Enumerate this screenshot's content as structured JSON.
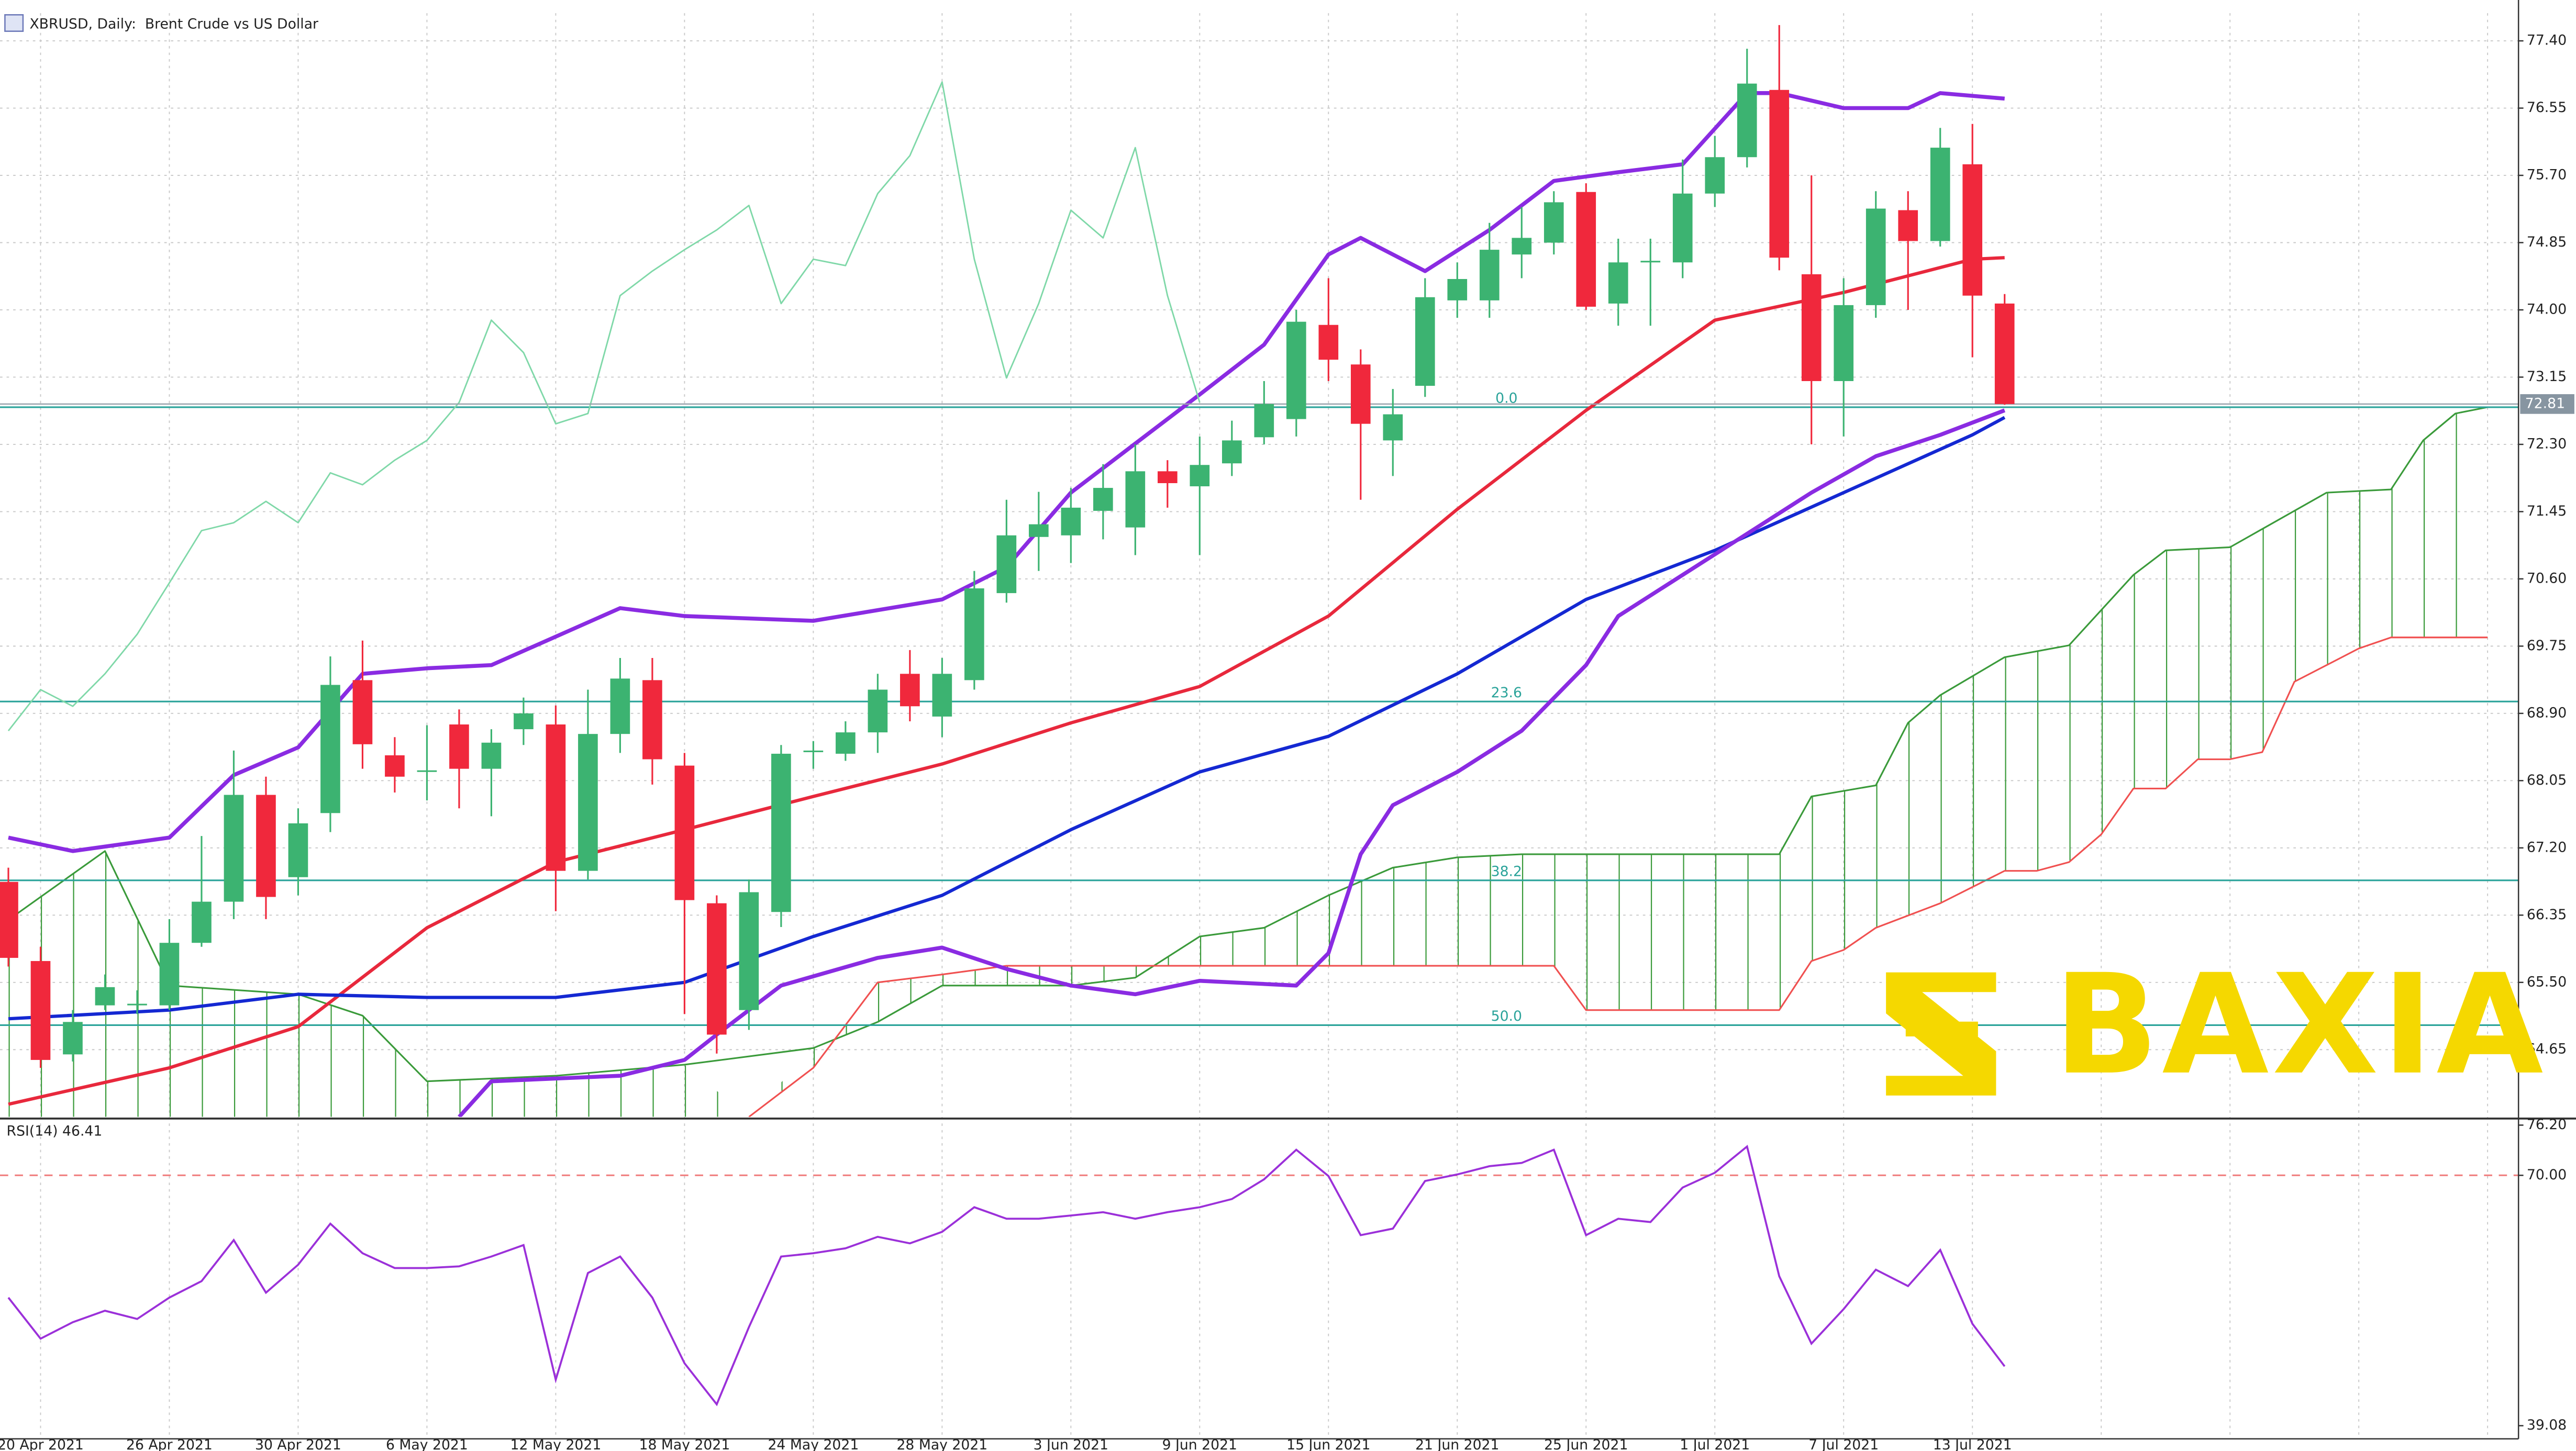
{
  "chart_data": {
    "type": "candlestick",
    "title": "XBRUSD, Daily:  Brent Crude vs US Dollar",
    "categories": [
      null,
      "20 Apr 2021",
      null,
      null,
      null,
      "26 Apr 2021",
      null,
      null,
      null,
      "30 Apr 2021",
      null,
      null,
      null,
      "6 May 2021",
      null,
      null,
      null,
      "12 May 2021",
      null,
      null,
      null,
      "18 May 2021",
      null,
      null,
      null,
      "24 May 2021",
      null,
      null,
      null,
      "28 May 2021",
      null,
      null,
      null,
      "3 Jun 2021",
      null,
      null,
      null,
      "9 Jun 2021",
      null,
      null,
      null,
      "15 Jun 2021",
      null,
      null,
      null,
      "21 Jun 2021",
      null,
      null,
      null,
      "25 Jun 2021",
      null,
      null,
      null,
      "1 Jul 2021",
      null,
      null,
      null,
      "7 Jul 2021",
      null,
      null,
      null,
      "13 Jul 2021",
      null
    ],
    "open": [
      66.77,
      65.77,
      64.59,
      65.21,
      65.21,
      65.21,
      66.0,
      66.52,
      67.87,
      66.83,
      67.64,
      69.32,
      68.37,
      68.16,
      68.76,
      68.2,
      68.7,
      68.76,
      66.91,
      68.64,
      69.32,
      68.24,
      66.5,
      65.15,
      66.39,
      68.41,
      68.39,
      68.66,
      69.4,
      68.86,
      69.32,
      70.42,
      71.13,
      71.15,
      71.46,
      71.25,
      71.96,
      71.77,
      72.06,
      72.39,
      72.62,
      73.81,
      73.31,
      72.35,
      73.04,
      74.12,
      74.12,
      74.7,
      74.85,
      75.49,
      74.08,
      74.6,
      74.6,
      75.47,
      75.93,
      76.78,
      74.45,
      73.1,
      74.06,
      75.26,
      74.87,
      75.84,
      74.08
    ],
    "high": [
      66.95,
      65.95,
      65.15,
      65.6,
      65.4,
      66.3,
      67.35,
      68.43,
      68.1,
      67.7,
      69.62,
      69.82,
      68.6,
      68.75,
      68.95,
      68.7,
      69.1,
      69.0,
      69.2,
      69.6,
      69.6,
      68.4,
      66.6,
      66.8,
      68.5,
      68.55,
      68.8,
      69.4,
      69.7,
      69.6,
      70.7,
      71.6,
      71.7,
      71.75,
      72.05,
      72.3,
      72.1,
      72.4,
      72.6,
      73.1,
      74.0,
      74.4,
      73.5,
      73.0,
      74.4,
      74.6,
      75.1,
      75.3,
      75.5,
      75.6,
      74.9,
      74.9,
      75.9,
      76.2,
      77.3,
      77.6,
      75.7,
      74.4,
      75.5,
      75.5,
      76.3,
      76.35,
      74.2
    ],
    "low": [
      65.7,
      64.42,
      64.5,
      65.15,
      65.1,
      65.15,
      65.95,
      66.3,
      66.3,
      66.6,
      67.4,
      68.2,
      67.9,
      67.8,
      67.7,
      67.6,
      68.5,
      66.4,
      66.8,
      68.4,
      68.0,
      65.1,
      64.6,
      64.9,
      66.2,
      68.2,
      68.3,
      68.4,
      68.8,
      68.6,
      69.2,
      70.3,
      70.7,
      70.8,
      71.1,
      70.9,
      71.5,
      70.9,
      71.9,
      72.3,
      72.4,
      73.1,
      71.6,
      71.9,
      72.9,
      73.9,
      73.9,
      74.4,
      74.7,
      74.0,
      73.8,
      73.8,
      74.4,
      75.3,
      75.8,
      74.5,
      72.3,
      72.4,
      73.9,
      74.0,
      74.8,
      73.4,
      72.8
    ],
    "close": [
      65.81,
      64.52,
      65.0,
      65.44,
      65.23,
      66.0,
      66.52,
      67.87,
      66.58,
      67.51,
      69.26,
      68.51,
      68.1,
      68.18,
      68.2,
      68.53,
      68.9,
      66.91,
      68.64,
      69.34,
      68.32,
      66.54,
      64.84,
      66.64,
      68.39,
      68.43,
      68.66,
      69.2,
      68.99,
      69.4,
      70.48,
      71.15,
      71.29,
      71.5,
      71.75,
      71.96,
      71.81,
      72.04,
      72.35,
      72.81,
      73.85,
      73.37,
      72.56,
      72.68,
      74.16,
      74.39,
      74.76,
      74.91,
      75.36,
      74.04,
      74.6,
      74.62,
      75.47,
      75.93,
      76.86,
      74.66,
      73.1,
      74.06,
      75.28,
      74.87,
      76.05,
      74.18,
      72.81
    ],
    "up_color": "#3cb371",
    "down_color": "#f0283c",
    "last_price": 72.81,
    "xlim": [
      -0.26,
      77.96
    ],
    "ylim": [
      63.8,
      77.75
    ],
    "yticks": [
      {
        "value": 77.4,
        "label": "77.40"
      },
      76.55,
      {
        "value": 75.7,
        "label": "75.70"
      },
      74.85,
      {
        "value": 74,
        "label": "74.00"
      },
      73.15,
      {
        "value": 72.3,
        "label": "72.30"
      },
      71.45,
      {
        "value": 70.6,
        "label": "70.60"
      },
      69.75,
      {
        "value": 68.9,
        "label": "68.90"
      },
      68.05,
      {
        "value": 67.2,
        "label": "67.20"
      },
      66.35,
      {
        "value": 65.5,
        "label": "65.50"
      },
      64.65
    ],
    "grid": true,
    "overlays": [
      {
        "color": "#e8283c",
        "width": 2,
        "x": [
          0,
          5,
          9,
          13,
          17,
          21,
          25,
          29,
          33,
          37,
          41,
          45,
          49,
          53,
          57,
          61,
          62
        ],
        "values": [
          63.96,
          64.42,
          64.94,
          66.19,
          67.02,
          67.43,
          67.85,
          68.26,
          68.78,
          69.24,
          70.13,
          71.48,
          72.73,
          73.87,
          74.22,
          74.64,
          74.66
        ]
      },
      {
        "color": "#1428d2",
        "width": 2,
        "x": [
          0,
          5,
          9,
          13,
          17,
          21,
          25,
          29,
          33,
          37,
          41,
          45,
          49,
          53,
          57,
          61,
          62
        ],
        "values": [
          65.04,
          65.15,
          65.35,
          65.31,
          65.31,
          65.5,
          66.08,
          66.6,
          67.43,
          68.16,
          68.61,
          69.4,
          70.34,
          70.96,
          71.69,
          72.42,
          72.64
        ]
      },
      {
        "color": "#8a2be2",
        "width": 2.4,
        "x": [
          0,
          2,
          5,
          7,
          9,
          11,
          13,
          15,
          19,
          21,
          25,
          29,
          31,
          33,
          35,
          37,
          39,
          41,
          42,
          44,
          46,
          48,
          50,
          52,
          54,
          55,
          57,
          59,
          60,
          62
        ],
        "values": [
          67.33,
          67.16,
          67.33,
          68.12,
          68.47,
          69.4,
          69.47,
          69.51,
          70.23,
          70.13,
          70.07,
          70.34,
          70.75,
          71.69,
          72.31,
          72.93,
          73.56,
          74.7,
          74.91,
          74.49,
          75.01,
          75.63,
          75.74,
          75.84,
          76.74,
          76.74,
          76.55,
          76.55,
          76.74,
          76.67
        ]
      },
      {
        "color": "#8a2be2",
        "width": 2.4,
        "x": [
          14,
          15,
          19,
          21,
          22,
          24,
          27,
          29,
          31,
          33,
          35,
          37,
          40,
          41,
          42,
          43,
          45,
          47,
          49,
          50,
          52,
          54,
          56,
          58,
          60,
          62
        ],
        "values": [
          63.8,
          64.25,
          64.32,
          64.52,
          64.84,
          65.46,
          65.81,
          65.94,
          65.67,
          65.46,
          65.35,
          65.52,
          65.46,
          65.87,
          67.12,
          67.74,
          68.16,
          68.68,
          69.51,
          70.13,
          70.65,
          71.17,
          71.69,
          72.15,
          72.42,
          72.73
        ]
      },
      {
        "color": "#7fd8a8",
        "width": 0.9,
        "x": [
          0,
          1,
          2,
          3,
          4,
          5,
          6,
          7,
          8,
          9,
          10,
          11,
          12,
          13,
          14,
          15,
          16,
          17,
          18,
          19,
          20,
          21,
          22,
          23,
          24,
          25,
          26,
          27,
          28,
          29,
          30,
          31,
          32,
          33,
          34,
          35,
          36,
          37
        ],
        "values": [
          68.68,
          69.2,
          68.99,
          69.4,
          69.9,
          70.55,
          71.21,
          71.31,
          71.58,
          71.31,
          71.94,
          71.79,
          72.1,
          72.35,
          72.83,
          73.87,
          73.46,
          72.56,
          72.69,
          74.18,
          74.49,
          74.76,
          75.01,
          75.32,
          74.08,
          74.64,
          74.56,
          75.47,
          75.95,
          76.88,
          74.64,
          73.14,
          74.08,
          75.26,
          74.91,
          76.05,
          74.18,
          72.83
        ]
      }
    ],
    "cloud": {
      "span_a": {
        "color": "#3a9a3a",
        "x": [
          0,
          3,
          5,
          9,
          11,
          13,
          17,
          21,
          25,
          27,
          29,
          33,
          35,
          37,
          39,
          41,
          43,
          45,
          47,
          55,
          56,
          58,
          59,
          60,
          62,
          64,
          66,
          67,
          69,
          72,
          74,
          75,
          76,
          77
        ],
        "values": [
          66.29,
          67.16,
          65.46,
          65.35,
          65.08,
          64.25,
          64.32,
          64.46,
          64.67,
          65.0,
          65.46,
          65.46,
          65.56,
          66.08,
          66.19,
          66.6,
          66.95,
          67.08,
          67.12,
          67.12,
          67.85,
          67.99,
          68.78,
          69.13,
          69.61,
          69.76,
          70.65,
          70.96,
          71.0,
          71.69,
          71.73,
          72.35,
          72.69,
          72.77
        ]
      },
      "span_b": {
        "color": "#f05050",
        "x": [
          23,
          25,
          27,
          29,
          31,
          48,
          49,
          55,
          56,
          57,
          58,
          60,
          62,
          63,
          64,
          65,
          66,
          67,
          68,
          69,
          70,
          71,
          72,
          73,
          74,
          77
        ],
        "values": [
          63.8,
          64.42,
          65.5,
          65.6,
          65.71,
          65.71,
          65.15,
          65.15,
          65.77,
          65.91,
          66.19,
          66.5,
          66.91,
          66.91,
          67.02,
          67.37,
          67.95,
          67.95,
          68.32,
          68.32,
          68.41,
          69.3,
          69.51,
          69.72,
          69.86,
          69.86
        ]
      }
    },
    "fib": {
      "color": "#2aa39a",
      "levels": [
        {
          "label": "0.0",
          "value": 72.77
        },
        {
          "label": "23.6",
          "value": 69.05
        },
        {
          "label": "38.2",
          "value": 66.79
        },
        {
          "label": "50.0",
          "value": 64.96
        }
      ]
    },
    "rsi": {
      "label": "RSI(14) 46.41",
      "color": "#9b30d9",
      "values": [
        54.9,
        49.83,
        51.86,
        53.28,
        52.26,
        54.9,
        56.93,
        62.0,
        55.51,
        58.96,
        64.03,
        60.38,
        58.55,
        58.55,
        58.76,
        59.97,
        61.39,
        44.76,
        57.94,
        59.97,
        54.9,
        46.79,
        41.72,
        51.25,
        59.97,
        60.38,
        60.99,
        62.41,
        61.6,
        63.02,
        66.06,
        64.64,
        64.64,
        65.04,
        65.45,
        64.64,
        65.45,
        66.06,
        67.07,
        69.51,
        73.16,
        69.91,
        62.61,
        63.42,
        69.3,
        70.11,
        71.13,
        71.53,
        73.16,
        62.61,
        64.64,
        64.23,
        68.49,
        70.32,
        73.56,
        57.54,
        49.22,
        53.48,
        58.35,
        56.32,
        60.78,
        51.66,
        46.41
      ],
      "ylim": [
        37.46,
        76.81
      ],
      "yticks": [
        {
          "value": 76.2,
          "label": "76.20"
        },
        {
          "value": 70,
          "label": "70.00"
        },
        39.08
      ],
      "levels": [
        70
      ],
      "level_color": "#f08080"
    },
    "watermark": "BAXIA",
    "watermark_color": "#f5d800"
  }
}
